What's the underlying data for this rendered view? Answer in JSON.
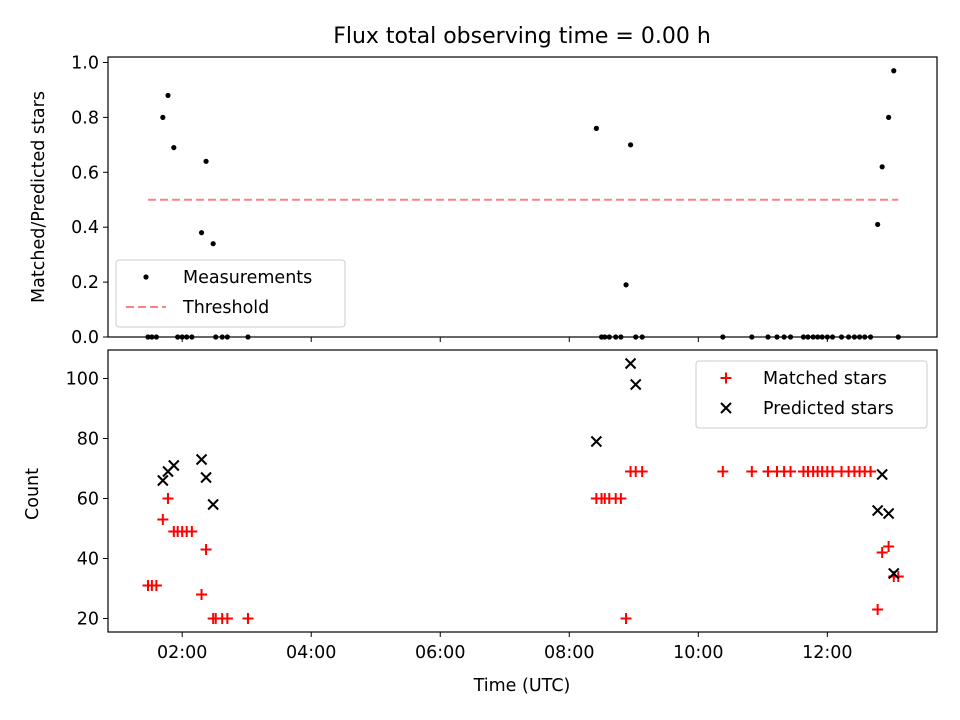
{
  "chart_data": [
    {
      "type": "scatter",
      "title": "Flux total observing time = 0.00 h",
      "xlabel": "",
      "ylabel": "Matched/Predicted stars",
      "xlim": [
        0.85,
        13.7
      ],
      "ylim": [
        0,
        1.02
      ],
      "yticks": [
        0,
        0.2,
        0.4,
        0.6,
        0.8,
        1.0
      ],
      "ytick_labels": [
        "0.0",
        "0.2",
        "0.4",
        "0.6",
        "0.8",
        "1.0"
      ],
      "xticks": [
        2,
        4,
        6,
        8,
        10,
        12
      ],
      "legend_position": "lower-left",
      "series": [
        {
          "name": "Measurements",
          "marker": "dot",
          "color": "#000000",
          "x": [
            1.47,
            1.53,
            1.6,
            1.7,
            1.78,
            1.87,
            1.93,
            2.0,
            2.07,
            2.15,
            2.3,
            2.37,
            2.48,
            2.52,
            2.62,
            2.7,
            3.02,
            8.42,
            8.5,
            8.55,
            8.62,
            8.72,
            8.8,
            8.88,
            8.95,
            9.03,
            9.13,
            10.38,
            10.83,
            11.08,
            11.22,
            11.33,
            11.43,
            11.63,
            11.7,
            11.78,
            11.85,
            11.92,
            12.0,
            12.08,
            12.22,
            12.33,
            12.42,
            12.5,
            12.58,
            12.67,
            12.78,
            12.85,
            12.95,
            13.03,
            13.1
          ],
          "y": [
            0,
            0,
            0,
            0.8,
            0.88,
            0.69,
            0,
            0,
            0,
            0,
            0.38,
            0.64,
            0.34,
            0,
            0,
            0,
            0,
            0.76,
            0,
            0,
            0,
            0,
            0,
            0.19,
            0.7,
            0,
            0,
            0,
            0,
            0,
            0,
            0,
            0,
            0,
            0,
            0,
            0,
            0,
            0,
            0,
            0,
            0,
            0,
            0,
            0,
            0,
            0.41,
            0.62,
            0.8,
            0.97,
            0
          ]
        },
        {
          "name": "Threshold",
          "marker": "dashed-line",
          "color": "#ff8080",
          "x": [
            1.47,
            13.1
          ],
          "y": [
            0.5,
            0.5
          ]
        }
      ]
    },
    {
      "type": "scatter",
      "title": "",
      "xlabel": "Time (UTC)",
      "ylabel": "Count",
      "xlim": [
        0.85,
        13.7
      ],
      "ylim": [
        15.5,
        109.5
      ],
      "yticks": [
        20,
        40,
        60,
        80,
        100
      ],
      "ytick_labels": [
        "20",
        "40",
        "60",
        "80",
        "100"
      ],
      "xticks": [
        2,
        4,
        6,
        8,
        10,
        12
      ],
      "xtick_labels": [
        "02:00",
        "04:00",
        "06:00",
        "08:00",
        "10:00",
        "12:00"
      ],
      "legend_position": "upper-right",
      "series": [
        {
          "name": "Matched stars",
          "marker": "plus",
          "color": "#ff0000",
          "x": [
            1.47,
            1.53,
            1.6,
            1.7,
            1.78,
            1.87,
            1.93,
            2.0,
            2.07,
            2.15,
            2.3,
            2.37,
            2.48,
            2.52,
            2.62,
            2.7,
            3.02,
            8.42,
            8.5,
            8.55,
            8.62,
            8.72,
            8.8,
            8.88,
            8.95,
            9.03,
            9.13,
            10.38,
            10.83,
            11.08,
            11.22,
            11.33,
            11.43,
            11.63,
            11.7,
            11.78,
            11.85,
            11.92,
            12.0,
            12.08,
            12.22,
            12.33,
            12.42,
            12.5,
            12.58,
            12.67,
            12.78,
            12.85,
            12.95,
            13.03,
            13.1
          ],
          "y": [
            31,
            31,
            31,
            53,
            60,
            49,
            49,
            49,
            49,
            49,
            28,
            43,
            20,
            20,
            20,
            20,
            20,
            60,
            60,
            60,
            60,
            60,
            60,
            20,
            69,
            69,
            69,
            69,
            69,
            69,
            69,
            69,
            69,
            69,
            69,
            69,
            69,
            69,
            69,
            69,
            69,
            69,
            69,
            69,
            69,
            69,
            23,
            42,
            44,
            34,
            34
          ]
        },
        {
          "name": "Predicted stars",
          "marker": "x",
          "color": "#000000",
          "x": [
            1.7,
            1.78,
            1.87,
            2.3,
            2.37,
            2.48,
            8.42,
            8.95,
            9.03,
            12.78,
            12.85,
            12.95,
            13.03
          ],
          "y": [
            66,
            69,
            71,
            73,
            67,
            58,
            79,
            105,
            98,
            56,
            68,
            55,
            35
          ]
        }
      ]
    }
  ]
}
